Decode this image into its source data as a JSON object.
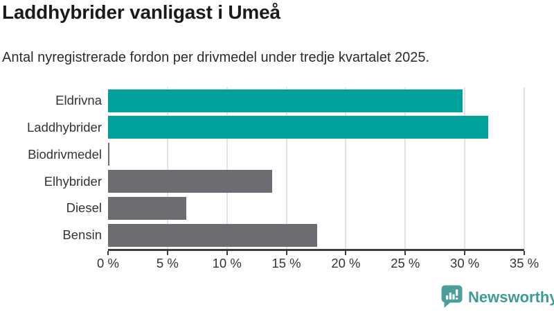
{
  "header": {
    "title": "Laddhybrider vanligast i Umeå",
    "subtitle": "Antal nyregistrerade fordon per drivmedel under tredje kvartalet 2025."
  },
  "chart_data": {
    "type": "bar",
    "orientation": "horizontal",
    "title": "Laddhybrider vanligast i Umeå",
    "subtitle": "Antal nyregistrerade fordon per drivmedel under tredje kvartalet 2025.",
    "categories": [
      "Eldrivna",
      "Laddhybrider",
      "Biodrivmedel",
      "Elhybrider",
      "Diesel",
      "Bensin"
    ],
    "values": [
      29.8,
      32.0,
      0.1,
      13.8,
      6.6,
      17.6
    ],
    "unit": "%",
    "xlabel": "",
    "ylabel": "",
    "xlim": [
      0,
      35
    ],
    "x_ticks": [
      "0 %",
      "5 %",
      "10 %",
      "15 %",
      "20 %",
      "25 %",
      "30 %",
      "35 %"
    ],
    "grid": "vertical",
    "legend": "none",
    "bar_colors": [
      "#00a29b",
      "#00a29b",
      "#6c6c72",
      "#6c6c72",
      "#6c6c72",
      "#6c6c72"
    ],
    "highlight_color": "#00a29b",
    "default_color": "#6c6c72",
    "gridline_color": "#e2e2e2",
    "axis_color": "#3c3c3c"
  },
  "footer": {
    "brand": "Newsworthy",
    "brand_color": "#3f9a95",
    "icon_color": "#4a9f9b",
    "logo_icon": "bar-chart-speech-bubble-icon"
  }
}
